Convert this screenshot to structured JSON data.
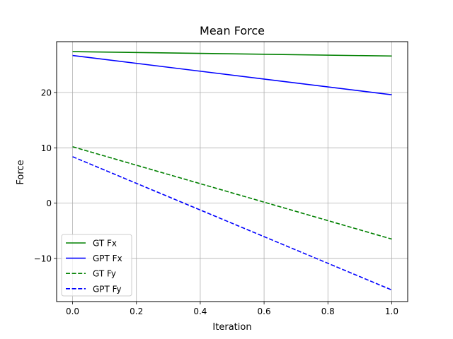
{
  "chart_data": {
    "type": "line",
    "title": "Mean Force",
    "xlabel": "Iteration",
    "ylabel": "Force",
    "xlim": [
      -0.05,
      1.05
    ],
    "ylim": [
      -17.8,
      29.2
    ],
    "xticks": [
      0.0,
      0.2,
      0.4,
      0.6,
      0.8,
      1.0
    ],
    "xtick_labels": [
      "0.0",
      "0.2",
      "0.4",
      "0.6",
      "0.8",
      "1.0"
    ],
    "yticks": [
      -10,
      0,
      10,
      20
    ],
    "ytick_labels": [
      "−10",
      "0",
      "10",
      "20"
    ],
    "grid": true,
    "legend_position": "lower-left",
    "series": [
      {
        "name": "GT Fx",
        "x": [
          0.0,
          1.0
        ],
        "y": [
          27.4,
          26.6
        ],
        "color": "#008000",
        "dash": "solid"
      },
      {
        "name": "GPT Fx",
        "x": [
          0.0,
          1.0
        ],
        "y": [
          26.7,
          19.6
        ],
        "color": "#0000ff",
        "dash": "solid"
      },
      {
        "name": "GT Fy",
        "x": [
          0.0,
          1.0
        ],
        "y": [
          10.2,
          -6.5
        ],
        "color": "#008000",
        "dash": "dashed"
      },
      {
        "name": "GPT Fy",
        "x": [
          0.0,
          1.0
        ],
        "y": [
          8.4,
          -15.7
        ],
        "color": "#0000ff",
        "dash": "dashed"
      }
    ]
  }
}
